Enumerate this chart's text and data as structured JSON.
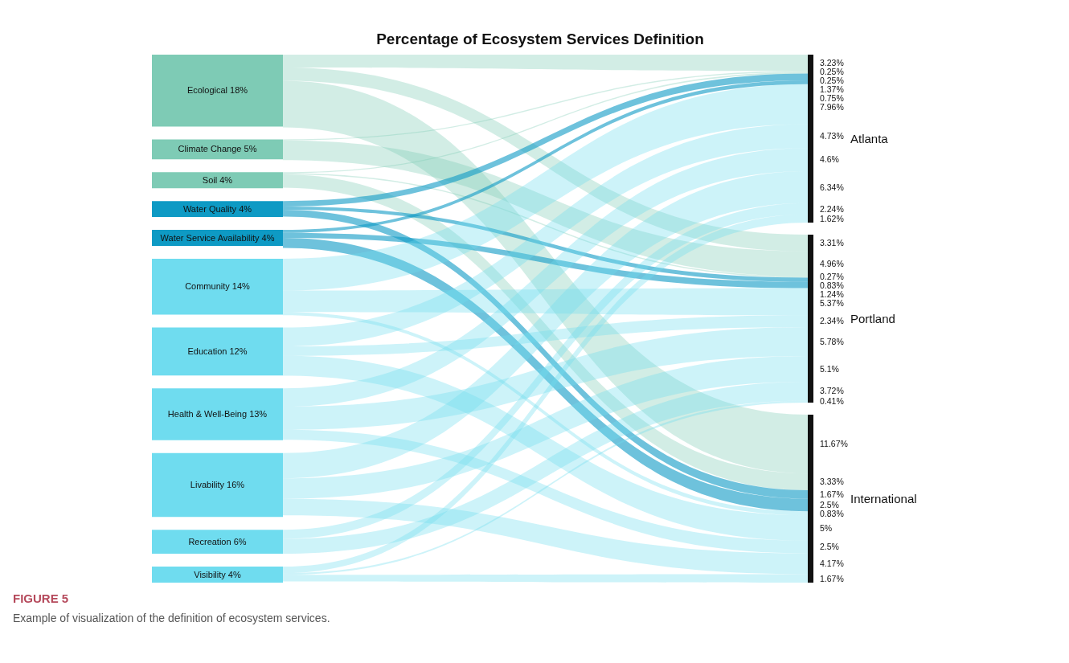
{
  "chart_data": [
    {
      "type": "other",
      "title": "Percentage of Ecosystem Services Definition",
      "categories": [
        "Ecological",
        "Climate Change",
        "Soil",
        "Water Quality",
        "Water Service Availability",
        "Community",
        "Education",
        "Health & Well-Being",
        "Livability",
        "Recreation",
        "Visibility"
      ],
      "values": [
        18,
        5,
        4,
        4,
        4,
        14,
        12,
        13,
        16,
        6,
        4
      ],
      "value_labels": [
        "18%",
        "5%",
        "4%",
        "4%",
        "4%",
        "14%",
        "12%",
        "13%",
        "16%",
        "6%",
        "4%"
      ],
      "colors": [
        "#7ecbb5",
        "#7ecbb5",
        "#7ecbb5",
        "#0e9ac4",
        "#0e9ac4",
        "#6fdcef",
        "#6fdcef",
        "#6fdcef",
        "#6fdcef",
        "#6fdcef",
        "#6fdcef"
      ],
      "annotations": [
        "FIGURE 5",
        "Example of visualization of the definition of ecosystem services."
      ]
    },
    {
      "type": "other",
      "title": "Atlanta",
      "color": "#111111",
      "values": [
        3.23,
        0.25,
        0.25,
        1.37,
        0.75,
        7.96,
        4.73,
        4.6,
        6.34,
        2.24,
        1.62
      ],
      "value_labels": [
        "3.23%",
        "0.25%",
        "0.25%",
        "1.37%",
        "0.75%",
        "7.96%",
        "4.73%",
        "4.6%",
        "6.34%",
        "2.24%",
        "1.62%"
      ]
    },
    {
      "type": "other",
      "title": "Portland",
      "color": "#111111",
      "values": [
        3.31,
        4.96,
        0.27,
        0.83,
        1.24,
        5.37,
        2.34,
        5.78,
        5.1,
        3.72,
        0.41
      ],
      "value_labels": [
        "3.31%",
        "4.96%",
        "0.27%",
        "0.83%",
        "1.24%",
        "5.37%",
        "2.34%",
        "5.78%",
        "5.1%",
        "3.72%",
        "0.41%"
      ]
    },
    {
      "type": "other",
      "title": "International",
      "color": "#111111",
      "values": [
        11.67,
        null,
        3.33,
        1.67,
        2.5,
        0.83,
        5,
        2.5,
        4.17,
        null,
        1.67
      ],
      "value_labels": [
        "11.67%",
        null,
        "3.33%",
        "1.67%",
        "2.5%",
        "0.83%",
        "5%",
        "2.5%",
        "4.17%",
        null,
        "1.67%"
      ]
    }
  ]
}
